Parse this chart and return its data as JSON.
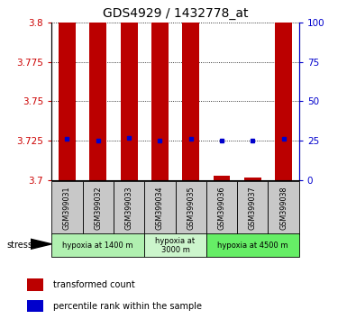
{
  "title": "GDS4929 / 1432778_at",
  "samples": [
    "GSM399031",
    "GSM399032",
    "GSM399033",
    "GSM399034",
    "GSM399035",
    "GSM399036",
    "GSM399037",
    "GSM399038"
  ],
  "transformed_counts": [
    3.8,
    3.8,
    3.8,
    3.8,
    3.8,
    3.703,
    3.702,
    3.8
  ],
  "percentile_ranks": [
    26,
    25,
    27,
    25,
    26,
    25,
    25,
    26
  ],
  "ylim": [
    3.7,
    3.8
  ],
  "yticks_left": [
    3.7,
    3.725,
    3.75,
    3.775,
    3.8
  ],
  "yticks_right": [
    0,
    25,
    50,
    75,
    100
  ],
  "groups": [
    {
      "label": "hypoxia at 1400 m",
      "start": 0,
      "end": 3,
      "color": "#b0f0b0"
    },
    {
      "label": "hypoxia at\n3000 m",
      "start": 3,
      "end": 5,
      "color": "#ccf5cc"
    },
    {
      "label": "hypoxia at 4500 m",
      "start": 5,
      "end": 8,
      "color": "#66ee66"
    }
  ],
  "bar_color": "#bb0000",
  "dot_color": "#0000cc",
  "grid_color": "#000000",
  "bg_color": "#ffffff",
  "left_tick_color": "#cc0000",
  "right_tick_color": "#0000cc",
  "sample_bg_color": "#c8c8c8",
  "legend_red_label": "transformed count",
  "legend_blue_label": "percentile rank within the sample"
}
